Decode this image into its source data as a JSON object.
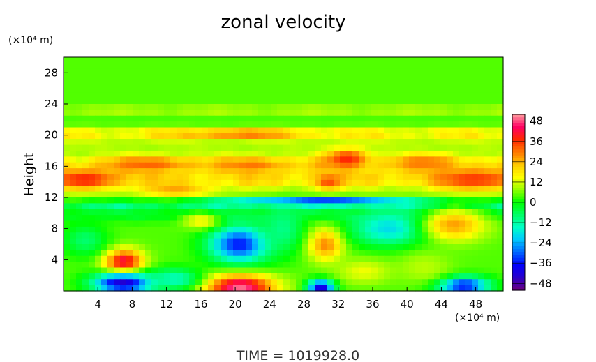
{
  "chart_data": {
    "type": "heatmap",
    "title": "zonal velocity",
    "xlabel": "",
    "ylabel": "Height",
    "x_unit": "(×10⁴ m)",
    "y_unit": "(×10⁴ m)",
    "x_ticks": [
      4,
      8,
      12,
      16,
      20,
      24,
      28,
      32,
      36,
      40,
      44,
      48
    ],
    "y_ticks": [
      4,
      8,
      12,
      16,
      20,
      24,
      28
    ],
    "xlim": [
      0,
      51.2
    ],
    "ylim": [
      0,
      30
    ],
    "colorbar": {
      "ticks": [
        48,
        36,
        24,
        12,
        0,
        -12,
        -24,
        -36,
        -48
      ],
      "range": [
        -52,
        52
      ],
      "palette": [
        "#6a0080",
        "#2a00c8",
        "#0000ff",
        "#0064ff",
        "#00c8ff",
        "#00ffc8",
        "#00ff64",
        "#00ff00",
        "#96ff00",
        "#ffff00",
        "#ffc800",
        "#ff7800",
        "#ff2800",
        "#ff0064",
        "#ffa0a0"
      ]
    },
    "background_value": 4,
    "bands": [
      {
        "y": 23.2,
        "half_width": 0.5,
        "value": 14
      },
      {
        "y": 21.7,
        "half_width": 0.4,
        "value": 2
      },
      {
        "y": 20.7,
        "half_width": 0.5,
        "value": 13
      },
      {
        "y": 19.9,
        "half_width": 0.8,
        "value": 22
      },
      {
        "y": 18.6,
        "half_width": 0.7,
        "value": 10
      },
      {
        "y": 16.3,
        "half_width": 1.4,
        "value": 27
      },
      {
        "y": 14.2,
        "half_width": 1.3,
        "value": 26
      },
      {
        "y": 12.2,
        "half_width": 0.6,
        "value": 8
      },
      {
        "y": 10.8,
        "half_width": 0.8,
        "value": -16
      },
      {
        "y": 9.3,
        "half_width": 0.6,
        "value": -4
      }
    ],
    "features": [
      {
        "x": 20.5,
        "y": 20.2,
        "rx": 7,
        "ry": 0.4,
        "value": 40
      },
      {
        "x": 2.5,
        "y": 14.3,
        "rx": 4,
        "ry": 1.2,
        "value": 38
      },
      {
        "x": 48,
        "y": 14.3,
        "rx": 5,
        "ry": 1.3,
        "value": 36
      },
      {
        "x": 33,
        "y": 17,
        "rx": 2.5,
        "ry": 1.2,
        "value": 38
      },
      {
        "x": 10,
        "y": 16.3,
        "rx": 5,
        "ry": 0.9,
        "value": 32
      },
      {
        "x": 22,
        "y": 16.2,
        "rx": 4,
        "ry": 0.9,
        "value": 30
      },
      {
        "x": 30.8,
        "y": 14,
        "rx": 1.5,
        "ry": 1,
        "value": 34
      },
      {
        "x": 42,
        "y": 16.5,
        "rx": 4,
        "ry": 1,
        "value": 30
      },
      {
        "x": 13,
        "y": 13,
        "rx": 4,
        "ry": 0.9,
        "value": 26
      },
      {
        "x": 30,
        "y": 11.5,
        "rx": 11,
        "ry": 0.5,
        "value": -34
      },
      {
        "x": 7,
        "y": 3.7,
        "rx": 2.2,
        "ry": 1.6,
        "value": 44
      },
      {
        "x": 7,
        "y": 1,
        "rx": 3.5,
        "ry": 1.3,
        "value": -44
      },
      {
        "x": 20.5,
        "y": 6,
        "rx": 3.5,
        "ry": 2.3,
        "value": -36
      },
      {
        "x": 20.5,
        "y": 0.5,
        "rx": 4,
        "ry": 1.5,
        "value": 50
      },
      {
        "x": 30.5,
        "y": 6,
        "rx": 2,
        "ry": 2,
        "value": 30
      },
      {
        "x": 30,
        "y": 0.5,
        "rx": 1.5,
        "ry": 0.9,
        "value": -44
      },
      {
        "x": 38,
        "y": 8,
        "rx": 4.5,
        "ry": 2.2,
        "value": -20
      },
      {
        "x": 45.5,
        "y": 8.5,
        "rx": 3.5,
        "ry": 2,
        "value": 26
      },
      {
        "x": 46.5,
        "y": 0.7,
        "rx": 3,
        "ry": 1.1,
        "value": -38
      },
      {
        "x": 13,
        "y": 1.5,
        "rx": 3,
        "ry": 1.4,
        "value": -14
      },
      {
        "x": 25.5,
        "y": 8,
        "rx": 2.5,
        "ry": 3,
        "value": -10
      },
      {
        "x": 2.5,
        "y": 6.5,
        "rx": 2.5,
        "ry": 2,
        "value": -8
      },
      {
        "x": 35,
        "y": 2.5,
        "rx": 3,
        "ry": 1.5,
        "value": 14
      },
      {
        "x": 42,
        "y": 3,
        "rx": 3,
        "ry": 2,
        "value": 10
      },
      {
        "x": 16,
        "y": 9,
        "rx": 2,
        "ry": 1,
        "value": 16
      }
    ]
  },
  "footer": {
    "time_label": "TIME  =  1019928.0"
  }
}
